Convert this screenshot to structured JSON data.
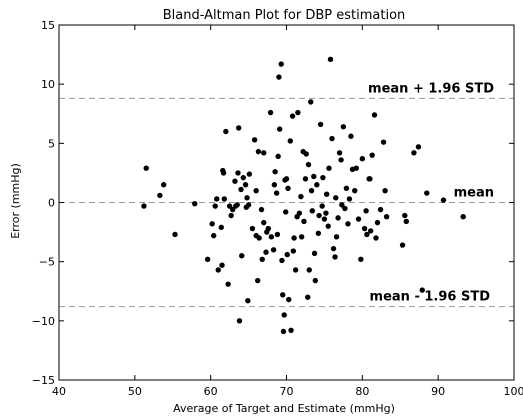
{
  "chart_data": {
    "type": "scatter",
    "title": "Bland-Altman Plot for DBP estimation",
    "xlabel": "Average of Target and Estimate (mmHg)",
    "ylabel": "Error (mmHg)",
    "xlim": [
      40,
      100
    ],
    "ylim": [
      -15,
      15
    ],
    "xticks": [
      "40",
      "50",
      "60",
      "70",
      "80",
      "90",
      "100"
    ],
    "yticks": [
      "−15",
      "−10",
      "−5",
      "0",
      "5",
      "10",
      "15"
    ],
    "grid": false,
    "point_color": "#000000",
    "reference_lines": [
      {
        "label": "mean + 1.96 STD",
        "y": 8.8
      },
      {
        "label": "mean",
        "y": 0.0
      },
      {
        "label": "mean - 1.96 STD",
        "y": -8.8
      }
    ],
    "points": [
      [
        51.2,
        -0.3
      ],
      [
        51.5,
        2.9
      ],
      [
        53.8,
        1.5
      ],
      [
        53.3,
        0.6
      ],
      [
        55.3,
        -2.7
      ],
      [
        57.9,
        -0.1
      ],
      [
        59.6,
        -4.8
      ],
      [
        60.4,
        -2.8
      ],
      [
        60.6,
        -0.3
      ],
      [
        60.8,
        0.3
      ],
      [
        61.0,
        -5.7
      ],
      [
        61.4,
        -2.1
      ],
      [
        61.5,
        -5.3
      ],
      [
        61.6,
        2.7
      ],
      [
        61.7,
        2.5
      ],
      [
        61.8,
        0.3
      ],
      [
        62.0,
        6.0
      ],
      [
        62.3,
        -6.9
      ],
      [
        62.5,
        -0.3
      ],
      [
        62.7,
        -1.1
      ],
      [
        62.9,
        -0.6
      ],
      [
        63.2,
        1.8
      ],
      [
        63.3,
        -0.3
      ],
      [
        63.6,
        2.5
      ],
      [
        63.7,
        6.3
      ],
      [
        63.8,
        -10.0
      ],
      [
        64.0,
        1.1
      ],
      [
        64.1,
        -4.5
      ],
      [
        64.3,
        2.1
      ],
      [
        64.6,
        1.5
      ],
      [
        64.7,
        -0.4
      ],
      [
        64.8,
        0.4
      ],
      [
        64.9,
        -8.3
      ],
      [
        65.0,
        -0.2
      ],
      [
        65.1,
        2.4
      ],
      [
        65.5,
        -2.2
      ],
      [
        65.8,
        5.3
      ],
      [
        66.0,
        1.0
      ],
      [
        66.2,
        -6.6
      ],
      [
        66.3,
        4.3
      ],
      [
        66.0,
        -2.8
      ],
      [
        66.4,
        -3.0
      ],
      [
        66.8,
        -4.8
      ],
      [
        67.0,
        -1.7
      ],
      [
        67.0,
        4.2
      ],
      [
        67.3,
        -4.2
      ],
      [
        67.4,
        -2.5
      ],
      [
        67.6,
        -2.2
      ],
      [
        67.9,
        7.6
      ],
      [
        68.0,
        -2.9
      ],
      [
        68.3,
        -4.0
      ],
      [
        68.4,
        1.5
      ],
      [
        68.5,
        2.6
      ],
      [
        68.7,
        0.8
      ],
      [
        68.8,
        -2.7
      ],
      [
        68.9,
        3.9
      ],
      [
        69.0,
        10.6
      ],
      [
        69.1,
        6.2
      ],
      [
        69.3,
        11.7
      ],
      [
        69.4,
        -4.9
      ],
      [
        69.5,
        -7.8
      ],
      [
        69.6,
        -10.9
      ],
      [
        69.7,
        -9.5
      ],
      [
        69.8,
        1.9
      ],
      [
        69.9,
        -0.8
      ],
      [
        70.0,
        2.0
      ],
      [
        70.1,
        -4.4
      ],
      [
        70.3,
        -8.2
      ],
      [
        70.5,
        5.2
      ],
      [
        70.6,
        -10.8
      ],
      [
        70.8,
        7.3
      ],
      [
        70.9,
        -4.1
      ],
      [
        71.0,
        -3.0
      ],
      [
        71.2,
        -5.7
      ],
      [
        71.4,
        -1.2
      ],
      [
        71.5,
        7.6
      ],
      [
        71.7,
        -0.9
      ],
      [
        71.9,
        0.5
      ],
      [
        72.0,
        -2.9
      ],
      [
        72.2,
        4.3
      ],
      [
        72.5,
        2.0
      ],
      [
        72.6,
        4.1
      ],
      [
        72.8,
        -8.0
      ],
      [
        72.9,
        3.2
      ],
      [
        73.0,
        -5.7
      ],
      [
        73.2,
        8.5
      ],
      [
        73.3,
        1.0
      ],
      [
        73.4,
        -0.7
      ],
      [
        73.6,
        2.2
      ],
      [
        73.7,
        -4.3
      ],
      [
        73.8,
        -6.6
      ],
      [
        74.0,
        1.5
      ],
      [
        74.2,
        -2.6
      ],
      [
        74.5,
        6.6
      ],
      [
        74.7,
        -0.3
      ],
      [
        74.8,
        2.1
      ],
      [
        75.0,
        -1.4
      ],
      [
        75.2,
        -0.9
      ],
      [
        75.3,
        0.7
      ],
      [
        75.5,
        -2.0
      ],
      [
        75.6,
        2.9
      ],
      [
        75.8,
        12.1
      ],
      [
        76.0,
        5.4
      ],
      [
        76.2,
        -3.9
      ],
      [
        76.4,
        -4.6
      ],
      [
        76.6,
        -2.9
      ],
      [
        76.8,
        -1.3
      ],
      [
        77.0,
        4.2
      ],
      [
        77.2,
        3.6
      ],
      [
        77.3,
        -0.2
      ],
      [
        77.5,
        6.4
      ],
      [
        77.7,
        -0.5
      ],
      [
        77.9,
        1.2
      ],
      [
        78.1,
        -1.8
      ],
      [
        78.3,
        0.3
      ],
      [
        78.5,
        5.6
      ],
      [
        78.7,
        2.8
      ],
      [
        79.0,
        1.0
      ],
      [
        79.2,
        2.9
      ],
      [
        79.5,
        -1.4
      ],
      [
        79.8,
        -4.8
      ],
      [
        80.0,
        3.7
      ],
      [
        80.3,
        -2.2
      ],
      [
        80.6,
        -2.7
      ],
      [
        80.9,
        2.0
      ],
      [
        81.1,
        -2.4
      ],
      [
        81.3,
        4.0
      ],
      [
        81.6,
        7.4
      ],
      [
        81.8,
        -3.0
      ],
      [
        82.0,
        -1.7
      ],
      [
        82.4,
        -0.6
      ],
      [
        82.8,
        5.1
      ],
      [
        83.2,
        -1.2
      ],
      [
        85.3,
        -3.6
      ],
      [
        85.6,
        -1.1
      ],
      [
        85.8,
        -1.6
      ],
      [
        86.8,
        4.2
      ],
      [
        87.4,
        4.7
      ],
      [
        87.9,
        -7.4
      ],
      [
        88.5,
        0.8
      ],
      [
        90.7,
        0.2
      ],
      [
        93.3,
        -1.2
      ],
      [
        80.5,
        -0.7
      ],
      [
        81.0,
        2.0
      ],
      [
        83.0,
        1.0
      ],
      [
        60.2,
        -1.8
      ],
      [
        63.5,
        -0.2
      ],
      [
        66.7,
        -0.6
      ],
      [
        70.2,
        1.2
      ],
      [
        72.3,
        -1.6
      ],
      [
        74.3,
        -1.1
      ],
      [
        76.5,
        0.4
      ]
    ]
  }
}
